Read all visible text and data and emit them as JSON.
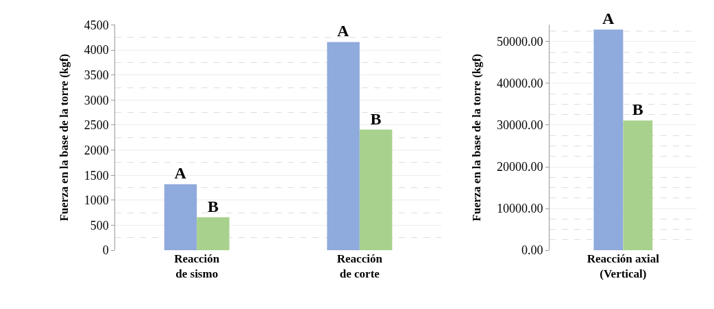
{
  "chart_data": [
    {
      "type": "bar",
      "ylabel": "Fuerza en la base de la torre (kgf)",
      "categories": [
        "Reacción\nde sismo",
        "Reacción\nde corte"
      ],
      "series": [
        {
          "name": "A",
          "color": "#8faadc",
          "values": [
            1320,
            4160
          ]
        },
        {
          "name": "B",
          "color": "#a9d18e",
          "values": [
            660,
            2410
          ]
        }
      ],
      "ylim": [
        0,
        4500
      ],
      "yticks": [
        0,
        500,
        1000,
        1500,
        2000,
        2500,
        3000,
        3500,
        4000,
        4500
      ],
      "grid": "y"
    },
    {
      "type": "bar",
      "ylabel": "Fuerza en la base de la torre (kgf)",
      "categories": [
        "Reacción axial\n(Vertical)"
      ],
      "series": [
        {
          "name": "A",
          "color": "#8faadc",
          "values": [
            52900
          ]
        },
        {
          "name": "B",
          "color": "#a9d18e",
          "values": [
            31100
          ]
        }
      ],
      "ylim": [
        0,
        54000
      ],
      "yticks": [
        {
          "value": 0,
          "label": "0.00"
        },
        {
          "value": 10000,
          "label": "10000.00"
        },
        {
          "value": 20000,
          "label": "20000.00"
        },
        {
          "value": 30000,
          "label": "30000.00"
        },
        {
          "value": 40000,
          "label": "40000.00"
        },
        {
          "value": 50000,
          "label": "50000.00"
        }
      ],
      "grid": "y"
    }
  ]
}
